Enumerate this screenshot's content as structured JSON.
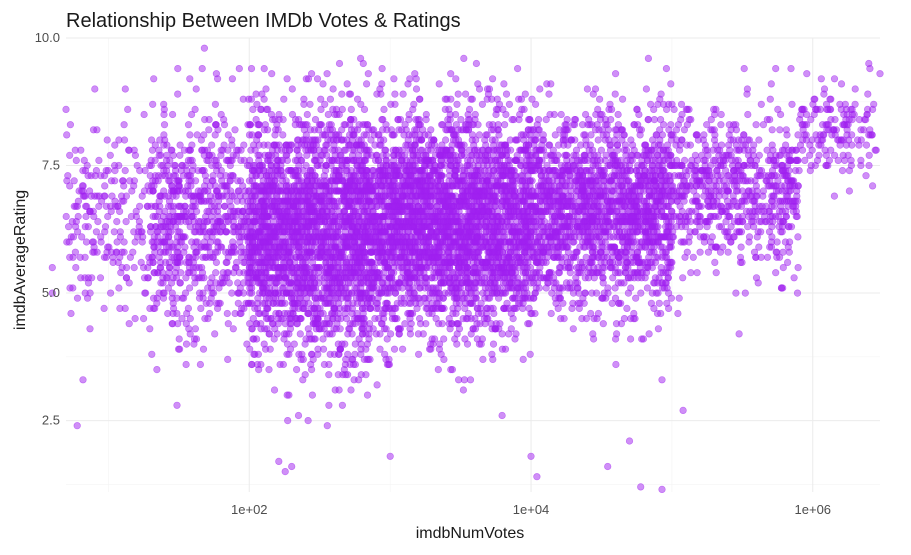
{
  "chart_data": {
    "type": "scatter",
    "title": "Relationship Between IMDb Votes & Ratings",
    "xlabel": "imdbNumVotes",
    "ylabel": "imdbAverageRating",
    "x_scale": "log10",
    "xlim": [
      5,
      3000000
    ],
    "ylim": [
      1.1,
      10.0
    ],
    "x_ticks": [
      100,
      10000,
      1000000
    ],
    "x_tick_labels": [
      "1e+02",
      "1e+04",
      "1e+06"
    ],
    "y_ticks": [
      2.5,
      5.0,
      7.5,
      10.0
    ],
    "y_tick_labels": [
      "2.5",
      "5.0",
      "7.5",
      "10.0"
    ],
    "grid": true,
    "legend": "none",
    "point_color": "#A020F0",
    "point_alpha": 0.5,
    "outlier_points": [
      {
        "x": 6,
        "y": 2.4
      },
      {
        "x": 48,
        "y": 9.8
      },
      {
        "x": 180,
        "y": 1.5
      },
      {
        "x": 11000,
        "y": 1.4
      },
      {
        "x": 60000,
        "y": 1.2
      },
      {
        "x": 85000,
        "y": 1.15
      },
      {
        "x": 120000,
        "y": 2.7
      },
      {
        "x": 85000,
        "y": 3.3
      },
      {
        "x": 50000,
        "y": 2.1
      },
      {
        "x": 2500000,
        "y": 9.5
      },
      {
        "x": 3000000,
        "y": 9.3
      },
      {
        "x": 1600000,
        "y": 9.1
      },
      {
        "x": 2000000,
        "y": 9.0
      },
      {
        "x": 1200000,
        "y": 8.9
      },
      {
        "x": 700000,
        "y": 9.4
      },
      {
        "x": 85,
        "y": 9.4
      },
      {
        "x": 700,
        "y": 9.3
      },
      {
        "x": 600000,
        "y": 5.1
      },
      {
        "x": 300000,
        "y": 4.2
      },
      {
        "x": 1000,
        "y": 1.8
      },
      {
        "x": 10000,
        "y": 1.8
      },
      {
        "x": 35000,
        "y": 1.6
      },
      {
        "x": 200,
        "y": 1.6
      },
      {
        "x": 8,
        "y": 9.0
      },
      {
        "x": 4,
        "y": 5.0
      },
      {
        "x": 4,
        "y": 5.5
      },
      {
        "x": 5,
        "y": 8.6
      }
    ],
    "density_regions": [
      {
        "logx_range": [
          0.6,
          1.3
        ],
        "y_mean": 6.5,
        "y_sd": 1.0,
        "n": 260
      },
      {
        "logx_range": [
          1.3,
          2.0
        ],
        "y_mean": 6.4,
        "y_sd": 1.1,
        "n": 700
      },
      {
        "logx_range": [
          2.0,
          3.0
        ],
        "y_mean": 6.2,
        "y_sd": 1.15,
        "n": 2600
      },
      {
        "logx_range": [
          3.0,
          4.0
        ],
        "y_mean": 6.4,
        "y_sd": 1.05,
        "n": 2600
      },
      {
        "logx_range": [
          4.0,
          5.0
        ],
        "y_mean": 6.6,
        "y_sd": 0.95,
        "n": 1700
      },
      {
        "logx_range": [
          5.0,
          5.9
        ],
        "y_mean": 7.0,
        "y_sd": 0.75,
        "n": 650
      },
      {
        "logx_range": [
          5.9,
          6.45
        ],
        "y_mean": 8.1,
        "y_sd": 0.45,
        "n": 150
      }
    ]
  }
}
